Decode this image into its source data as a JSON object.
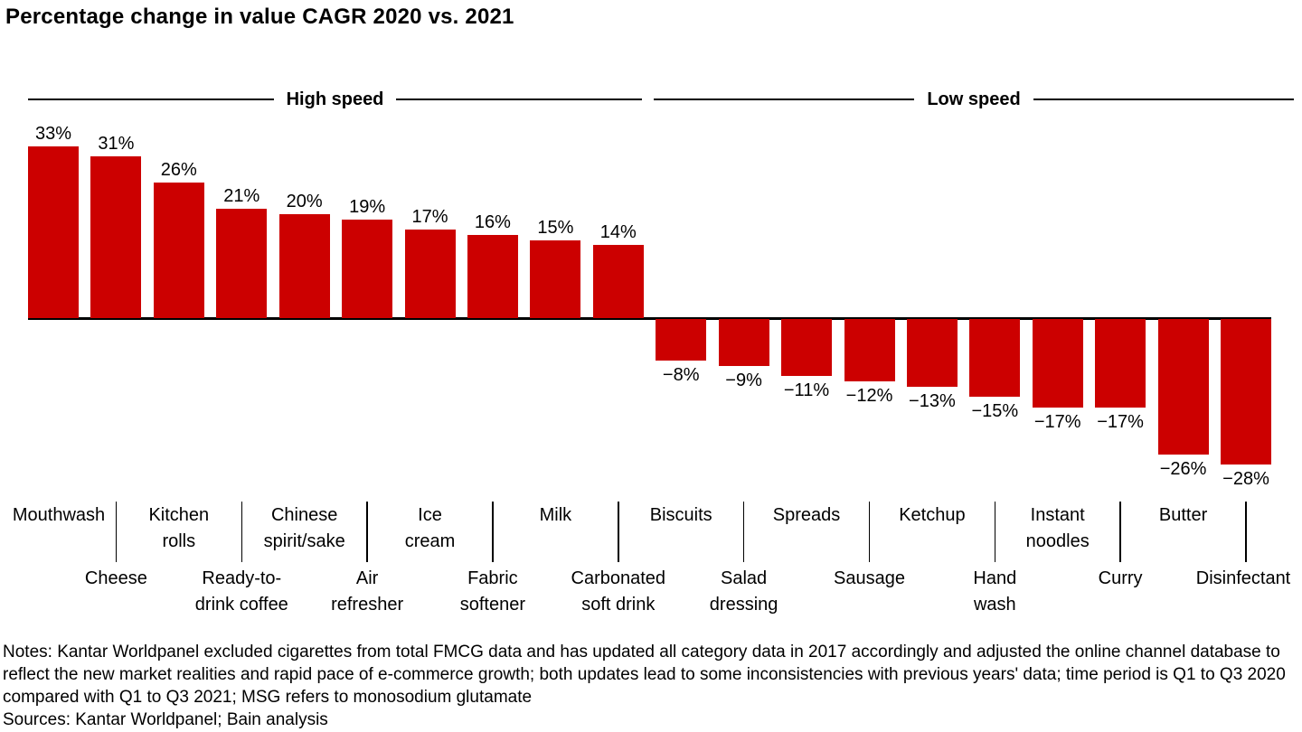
{
  "title": "Percentage change in value CAGR 2020 vs. 2021",
  "chart_data": {
    "type": "bar",
    "title": "Percentage change in value CAGR 2020 vs. 2021",
    "categories": [
      "Mouthwash",
      "Cheese",
      "Kitchen\nrolls",
      "Ready-to-\ndrink coffee",
      "Chinese\nspirit/sake",
      "Air\nrefresher",
      "Ice\ncream",
      "Fabric\nsoftener",
      "Milk",
      "Carbonated\nsoft drink",
      "Biscuits",
      "Salad\ndressing",
      "Spreads",
      "Sausage",
      "Ketchup",
      "Hand\nwash",
      "Instant\nnoodles",
      "Curry",
      "Butter",
      "Disinfectant"
    ],
    "values": [
      33,
      31,
      26,
      21,
      20,
      19,
      17,
      16,
      15,
      14,
      -8,
      -9,
      -11,
      -12,
      -13,
      -15,
      -17,
      -17,
      -26,
      -28
    ],
    "value_labels": [
      "33%",
      "31%",
      "26%",
      "21%",
      "20%",
      "19%",
      "17%",
      "16%",
      "15%",
      "14%",
      "−8%",
      "−9%",
      "−11%",
      "−12%",
      "−13%",
      "−15%",
      "−17%",
      "−17%",
      "−26%",
      "−28%"
    ],
    "groups": [
      {
        "label": "High speed",
        "categories_span": [
          0,
          9
        ]
      },
      {
        "label": "Low speed",
        "categories_span": [
          10,
          19
        ]
      }
    ],
    "bar_color": "#CC0000",
    "axis_color": "#000000",
    "ylim": [
      -28,
      33
    ],
    "grid": false,
    "legend": "none",
    "xlabel": "",
    "ylabel": ""
  },
  "notes": "Notes: Kantar Worldpanel excluded cigarettes from total FMCG data and has updated all category data in 2017 accordingly and adjusted the online channel database to reflect the new market realities and rapid pace of e-commerce growth; both updates lead to some inconsistencies with previous years' data; time period is Q1 to Q3 2020 compared with Q1 to Q3 2021; MSG refers to monosodium glutamate",
  "sources": "Sources: Kantar Worldpanel; Bain analysis"
}
